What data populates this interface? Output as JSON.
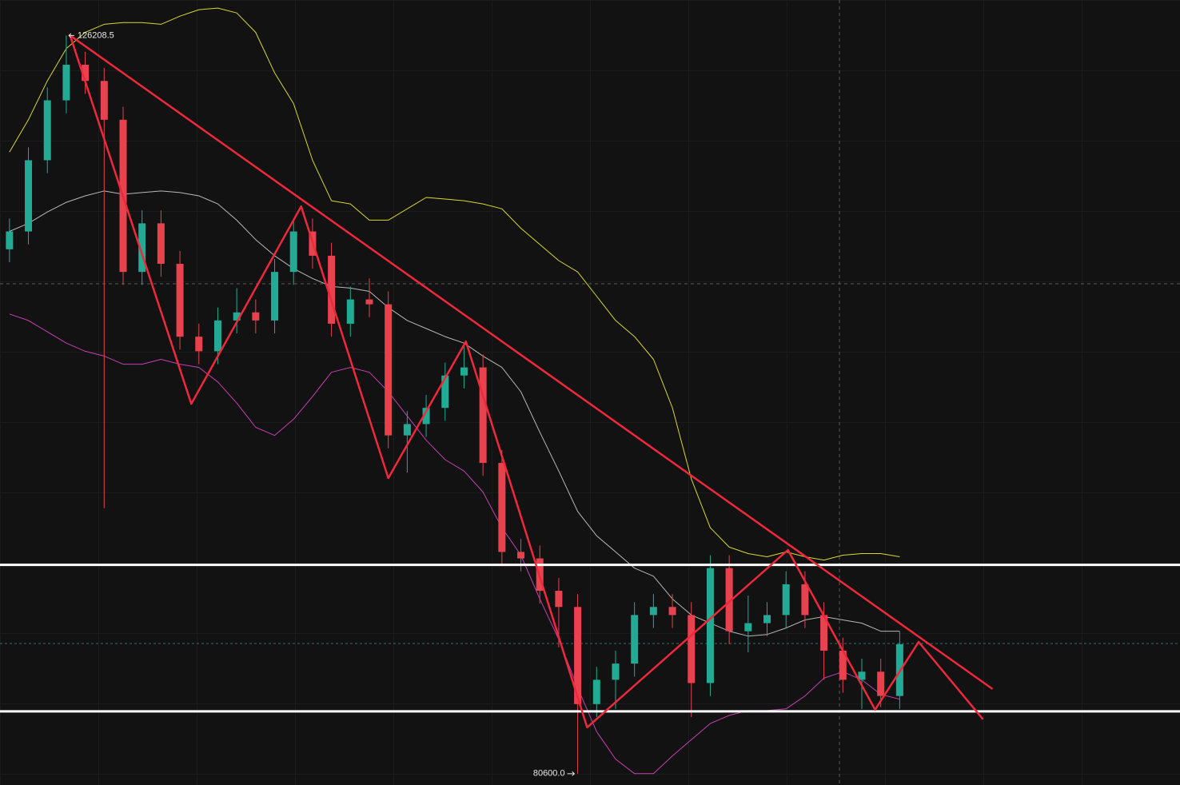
{
  "chart_data": {
    "type": "candlestick",
    "categories": [
      null,
      null,
      null,
      null,
      null,
      null,
      null,
      null,
      null,
      null,
      null,
      null,
      null,
      null,
      null,
      null,
      null,
      null,
      null,
      null,
      null,
      null,
      null,
      null,
      null,
      null,
      null,
      null,
      null,
      null,
      null,
      null,
      null,
      null,
      null,
      null,
      null,
      null,
      null,
      null,
      null,
      null,
      null,
      null,
      null,
      null,
      null,
      null
    ],
    "open": [
      113000,
      114100,
      118500,
      122200,
      124400,
      123400,
      121000,
      111600,
      114600,
      112100,
      107600,
      106700,
      108600,
      109100,
      108600,
      111600,
      114100,
      112600,
      108400,
      109900,
      109600,
      101500,
      102200,
      103200,
      105200,
      105700,
      99800,
      94300,
      93900,
      91900,
      90900,
      84900,
      86400,
      87400,
      90400,
      90900,
      90400,
      86200,
      93300,
      89400,
      89900,
      90400,
      92300,
      90400,
      88200,
      86400,
      86900,
      85400
    ],
    "high": [
      114900,
      119300,
      123000,
      126208.5,
      125200,
      124200,
      121800,
      115400,
      115400,
      112900,
      108400,
      109400,
      110600,
      109900,
      112400,
      114900,
      114900,
      113400,
      110700,
      111200,
      110400,
      103000,
      104000,
      106000,
      107000,
      106500,
      100600,
      95100,
      94700,
      92700,
      91700,
      87200,
      88200,
      91200,
      91700,
      91700,
      91200,
      94100,
      94100,
      91600,
      91200,
      93100,
      93100,
      91200,
      89000,
      87700,
      87700,
      89400
    ],
    "low": [
      112200,
      113300,
      117700,
      121400,
      122600,
      97000,
      110800,
      110800,
      111300,
      106800,
      105900,
      105900,
      107800,
      107800,
      107800,
      110800,
      111800,
      107600,
      107600,
      108800,
      100700,
      99200,
      101400,
      102400,
      104400,
      99000,
      93500,
      93100,
      91100,
      88400,
      80600,
      84100,
      84600,
      86600,
      89600,
      89600,
      84100,
      85400,
      88600,
      88100,
      89100,
      89600,
      89600,
      86400,
      85600,
      84600,
      84700,
      84600
    ],
    "close": [
      114100,
      118500,
      122200,
      124400,
      123400,
      121000,
      111600,
      114600,
      112100,
      107600,
      106700,
      108600,
      109100,
      108600,
      111600,
      114100,
      112600,
      108400,
      109900,
      109600,
      101500,
      102200,
      103200,
      105200,
      105700,
      99800,
      94300,
      93900,
      91900,
      90900,
      84900,
      86400,
      87400,
      90400,
      90900,
      90400,
      86200,
      93300,
      89400,
      89900,
      90400,
      92300,
      90400,
      88200,
      86400,
      86900,
      85400,
      88600
    ],
    "up_color": "#22ab94",
    "down_color": "#e8424f",
    "xlim": [
      -0.5,
      61.8
    ],
    "ylim": [
      79900,
      128400
    ],
    "bands": [
      {
        "color": "#d8d830",
        "values": [
          119000,
          121000,
          123400,
          125400,
          126400,
          126900,
          127000,
          127000,
          126900,
          127400,
          127800,
          127900,
          127600,
          126400,
          123900,
          122000,
          118500,
          116000,
          115800,
          114800,
          114800,
          115500,
          116200,
          116100,
          116000,
          115800,
          115500,
          114300,
          113300,
          112300,
          111600,
          110100,
          108600,
          107600,
          106200,
          103200,
          98800,
          95800,
          94600,
          94200,
          94000,
          94300,
          94000,
          93800,
          94100,
          94200,
          94200,
          94000
        ]
      },
      {
        "color": "#b8b8b8",
        "values": [
          114100,
          114600,
          115300,
          115900,
          116300,
          116600,
          116400,
          116500,
          116600,
          116500,
          116300,
          115800,
          114800,
          113600,
          112600,
          111800,
          111200,
          110700,
          110600,
          110400,
          109400,
          108600,
          108100,
          107600,
          107200,
          106400,
          105700,
          104200,
          101700,
          99300,
          96800,
          95300,
          94300,
          93300,
          92800,
          91400,
          90400,
          89900,
          89400,
          89100,
          89200,
          89600,
          90100,
          90300,
          90100,
          89900,
          89400,
          89400
        ]
      },
      {
        "color": "#c43fb4",
        "values": [
          109000,
          108600,
          107900,
          107200,
          106700,
          106400,
          105900,
          105900,
          106200,
          105900,
          105700,
          104800,
          103500,
          102000,
          101500,
          102500,
          103900,
          105400,
          105700,
          105400,
          104200,
          102700,
          101200,
          100000,
          99300,
          98000,
          95800,
          94100,
          91400,
          88900,
          85900,
          83200,
          81500,
          80600,
          80600,
          81700,
          82700,
          83700,
          84200,
          84500,
          84500,
          84600,
          85400,
          86500,
          86900,
          86400,
          85500,
          85200
        ]
      }
    ],
    "levels": {
      "color": "#ffffff",
      "values": [
        93500,
        84450
      ]
    },
    "drawings": {
      "color": "#f0283c",
      "lines": [
        {
          "x": [
            3.2,
            51.9
          ],
          "values": [
            126208.5,
            85830
          ]
        },
        {
          "x": [
            3.2,
            9.6,
            15.4,
            20.0,
            24.1,
            30.5,
            41.1,
            45.7,
            48.0,
            51.4
          ],
          "values": [
            126208.5,
            103450,
            115650,
            98860,
            107300,
            83460,
            94420,
            84550,
            88740,
            83960
          ]
        }
      ]
    },
    "high_label": 126208.5,
    "low_label": {
      "value": 80600,
      "label": "80600.0"
    }
  }
}
